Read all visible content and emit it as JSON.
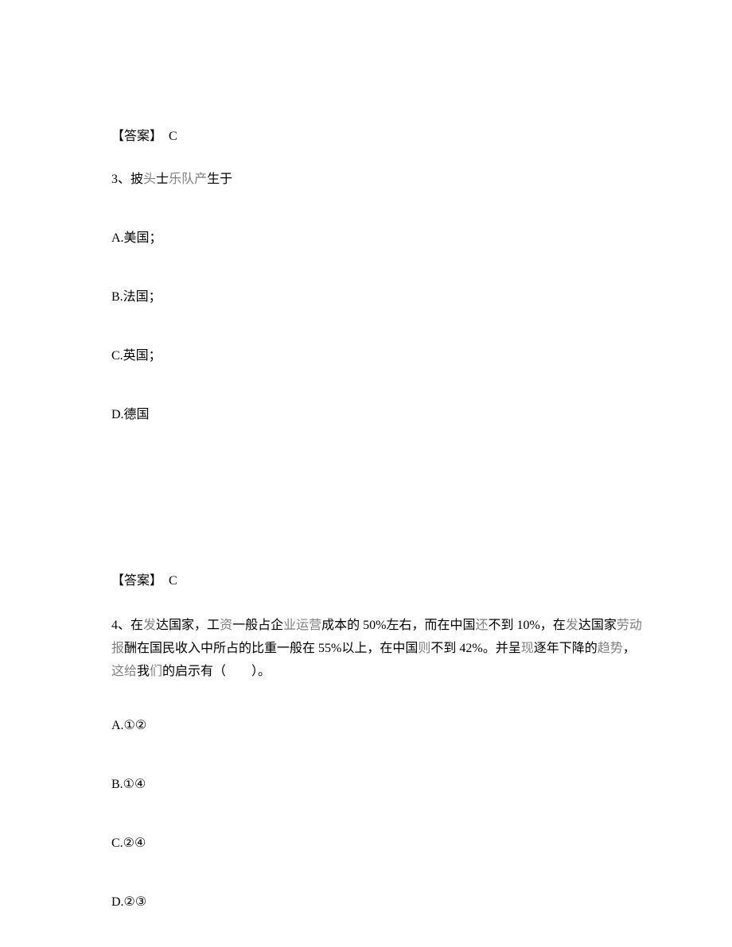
{
  "answer2": {
    "label": "【答案】",
    "value": "C"
  },
  "q3": {
    "num": "3、",
    "stem_a": "披",
    "stem_gray1": "头",
    "stem_b": "士",
    "stem_gray2": "乐队产",
    "stem_c": "生于",
    "optA": "A.美国；",
    "optB": "B.法国；",
    "optC": "C.英国；",
    "optD": "D.德国"
  },
  "answer3": {
    "label": "【答案】",
    "value": "C"
  },
  "q4": {
    "num": "4、",
    "s1": "在",
    "g1": "发",
    "s2": "达国家，工",
    "g2": "资",
    "s3": "一般占企",
    "g3": "业运营",
    "s4": "成本的 50%左右，而在中国",
    "g4": "还",
    "s5": "不到 10%，在",
    "g5": "发",
    "s6": "达国家",
    "g6": "劳动报",
    "s7": "酬在国民收入中所占的比重一般在 55%以上，在中国",
    "g7": "则",
    "s8": "不到 42%。并呈",
    "g8": "现",
    "s9": "逐年下降的",
    "g9": "趋势",
    "s10": "，",
    "g10": "这给",
    "s11": "我",
    "g11": "们",
    "s12": "的启示有（　　）。",
    "optA": "A.①②",
    "optB": "B.①④",
    "optC": "C.②④",
    "optD": "D.②③"
  }
}
